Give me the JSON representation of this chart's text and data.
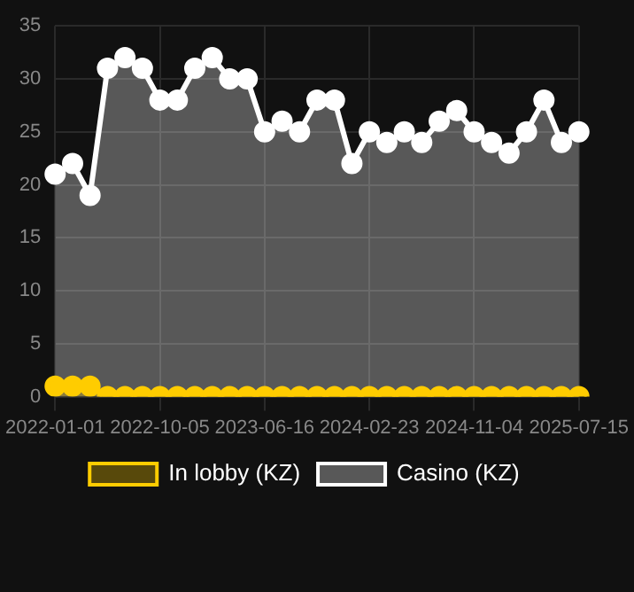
{
  "chart_data": {
    "type": "area",
    "categories": [
      "2022-01-01",
      null,
      null,
      null,
      null,
      null,
      "2022-10-05",
      null,
      null,
      null,
      null,
      null,
      "2023-06-16",
      null,
      null,
      null,
      null,
      null,
      "2024-02-23",
      null,
      null,
      null,
      null,
      null,
      "2024-11-04",
      null,
      null,
      null,
      null,
      null,
      "2025-07-15"
    ],
    "series": [
      {
        "name": "In lobby (KZ)",
        "color": "#ffcc00",
        "values": [
          1,
          1,
          1,
          0,
          0,
          0,
          0,
          0,
          0,
          0,
          0,
          0,
          0,
          0,
          0,
          0,
          0,
          0,
          0,
          0,
          0,
          0,
          0,
          0,
          0,
          0,
          0,
          0,
          0,
          0,
          0
        ]
      },
      {
        "name": "Casino (KZ)",
        "color": "#ffffff",
        "values": [
          21,
          22,
          19,
          31,
          32,
          31,
          28,
          28,
          31,
          32,
          30,
          30,
          25,
          26,
          25,
          28,
          28,
          22,
          25,
          24,
          25,
          24,
          26,
          27,
          25,
          24,
          23,
          25,
          28,
          24,
          25
        ]
      }
    ],
    "ylim": [
      0,
      35
    ],
    "yticks": [
      0,
      5,
      10,
      15,
      20,
      25,
      30,
      35
    ],
    "grid": true,
    "legend": "bottom",
    "marker": "circle"
  }
}
